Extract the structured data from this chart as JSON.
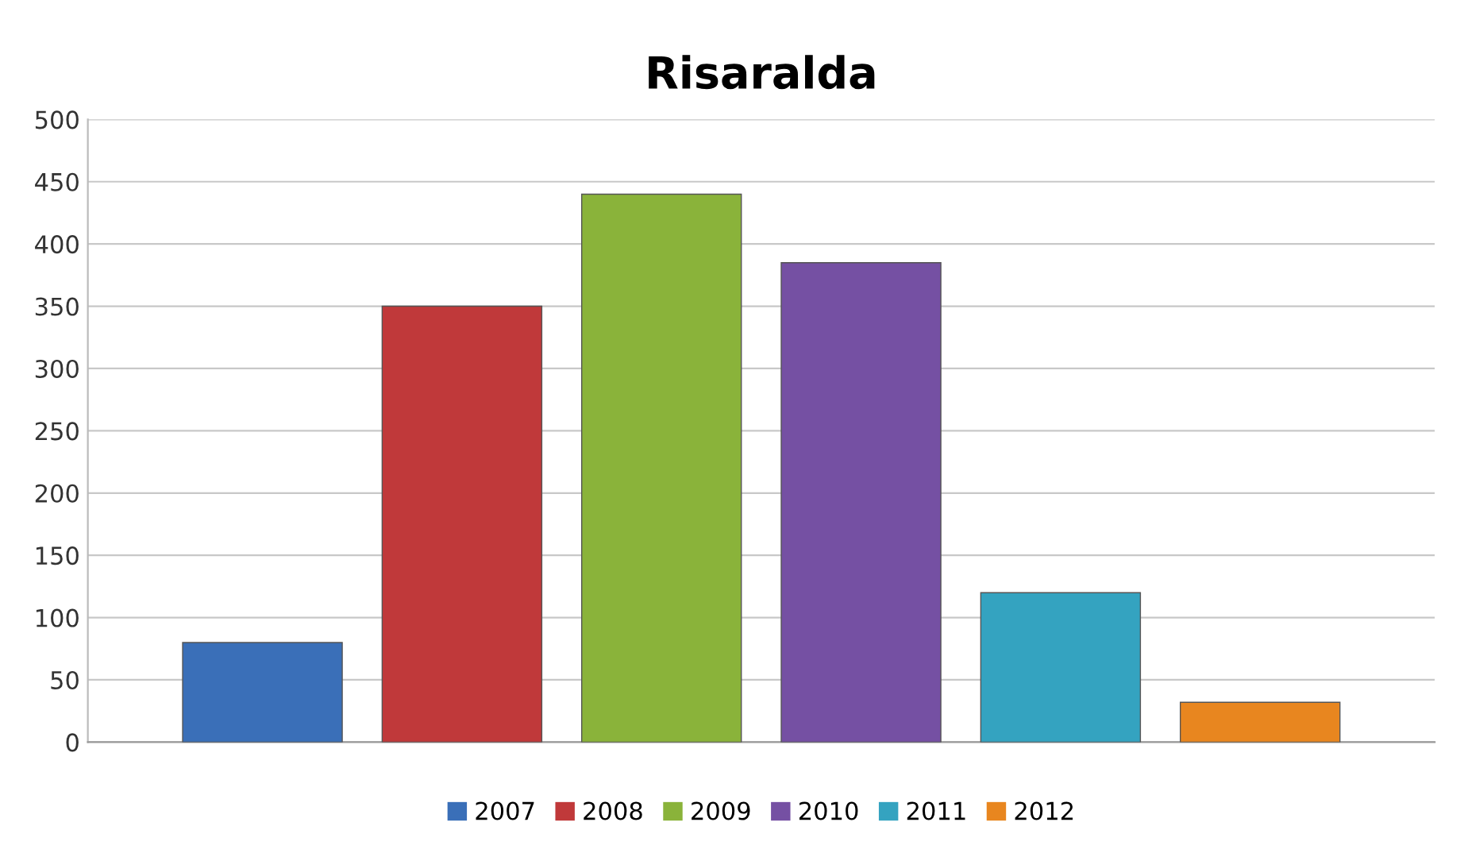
{
  "chart_data": {
    "type": "bar",
    "title": "Risaralda",
    "categories": [
      null
    ],
    "series": [
      {
        "name": "2007",
        "color": "#3a6fb8",
        "values": [
          80
        ]
      },
      {
        "name": "2008",
        "color": "#c0393a",
        "values": [
          350
        ]
      },
      {
        "name": "2009",
        "color": "#8ab33a",
        "values": [
          440
        ]
      },
      {
        "name": "2010",
        "color": "#7550a3",
        "values": [
          385
        ]
      },
      {
        "name": "2011",
        "color": "#34a3c0",
        "values": [
          120
        ]
      },
      {
        "name": "2012",
        "color": "#e8861f",
        "values": [
          32
        ]
      }
    ],
    "ylim": [
      0,
      500
    ],
    "yticks": [
      0,
      50,
      100,
      150,
      200,
      250,
      300,
      350,
      400,
      450,
      500
    ],
    "grid": "y",
    "legend": "bottom"
  }
}
